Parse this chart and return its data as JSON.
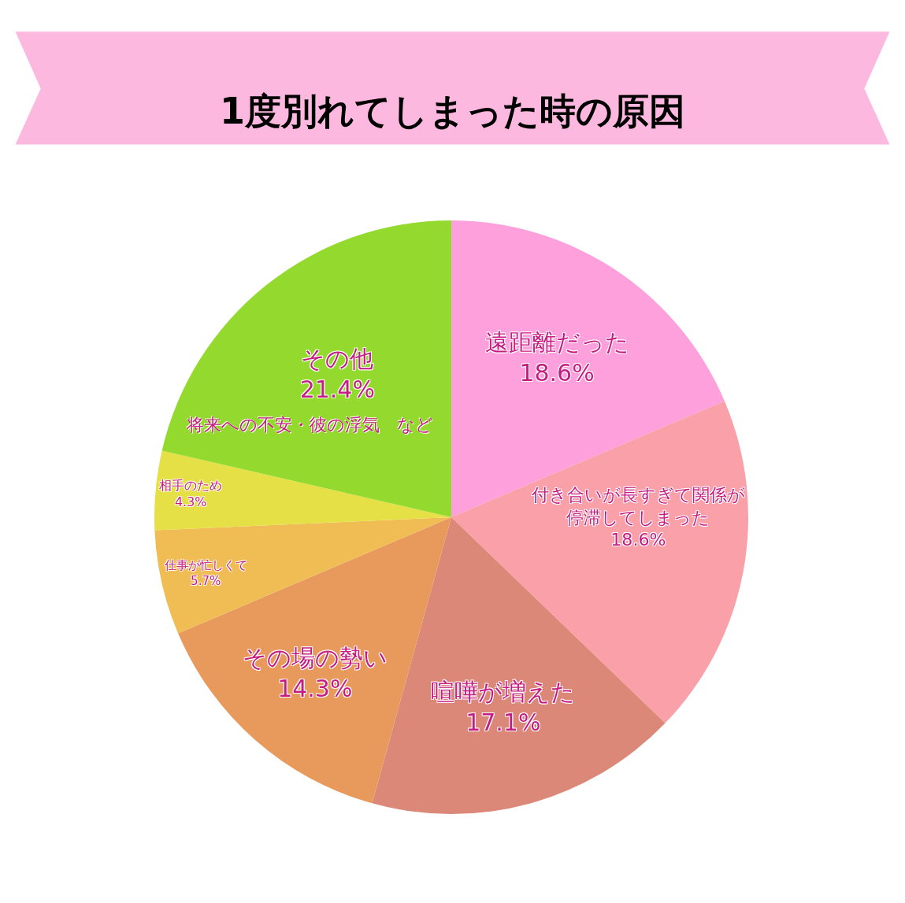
{
  "chart_data": {
    "type": "pie",
    "title": "1度別れてしまった時の原因",
    "categories": [
      "遠距離だった",
      "付き合いが長すぎて関係が停滞してしまった",
      "喧嘩が増えた",
      "その場の勢い",
      "仕事が忙しくて",
      "相手のため",
      "その他"
    ],
    "values": [
      18.6,
      18.6,
      17.1,
      14.3,
      5.7,
      4.3,
      21.4
    ],
    "value_labels": [
      "18.6%",
      "18.6%",
      "17.1%",
      "14.3%",
      "5.7%",
      "4.3%",
      "21.4%"
    ],
    "colors": [
      "#fda0dc",
      "#f9a0a8",
      "#db8878",
      "#e79a5c",
      "#f0bc54",
      "#e5e045",
      "#94da2e"
    ],
    "annotations": [
      "将来への不安・彼の浮気　など"
    ],
    "legend": false
  }
}
